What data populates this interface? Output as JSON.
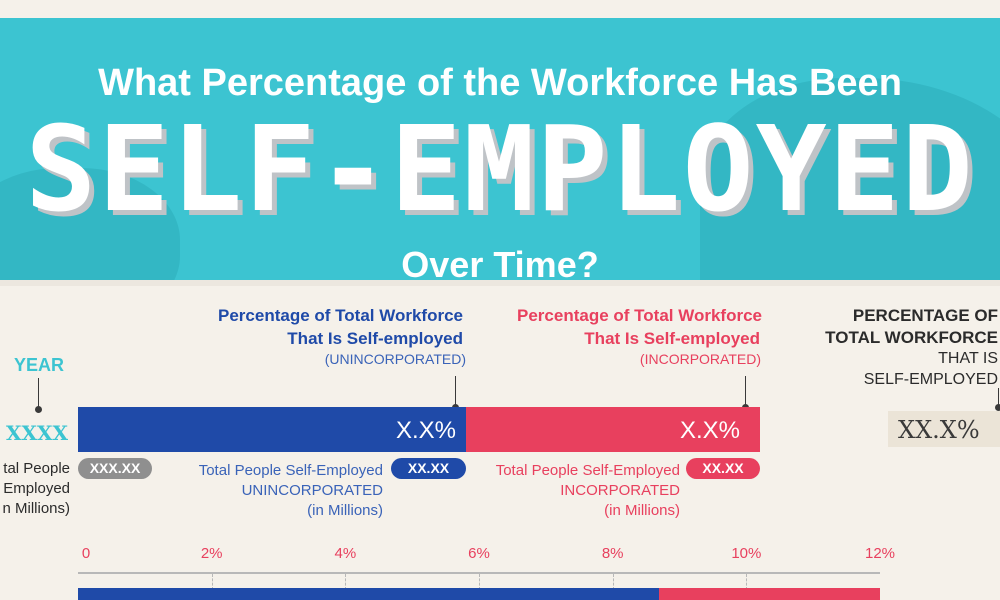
{
  "banner": {
    "title_line1": "What Percentage of the Workforce Has Been",
    "title_line2": "SELF-EMPLOYED",
    "title_line3": "Over Time?"
  },
  "legend": {
    "year_label": "YEAR",
    "year_value": "XXXX",
    "unincorporated": {
      "heading_line1": "Percentage of Total Workforce",
      "heading_line2": "That Is Self-employed",
      "tag": "(UNINCORPORATED)",
      "bar_value": "X.X%",
      "people_label": "Total People Self-Employed",
      "people_type": "UNINCORPORATED",
      "people_unit": "(in Millions)",
      "people_value": "XX.XX"
    },
    "incorporated": {
      "heading_line1": "Percentage of Total Workforce",
      "heading_line2": "That Is Self-employed",
      "tag": "(INCORPORATED)",
      "bar_value": "X.X%",
      "people_label": "Total People Self-Employed",
      "people_type": "INCORPORATED",
      "people_unit": "(in Millions)",
      "people_value": "XX.XX"
    },
    "total_people": {
      "line1": "tal People",
      "line2": "Employed",
      "line3": "n Millions)",
      "value": "XXX.XX"
    },
    "total_pct": {
      "line1": "PERCENTAGE OF",
      "line2": "TOTAL WORKFORCE",
      "line3": "THAT IS",
      "line4": "SELF-EMPLOYED",
      "value": "XX.X%"
    }
  },
  "colors": {
    "unincorporated": "#1f4aa8",
    "incorporated": "#e8405e",
    "banner": "#3cc4d1"
  },
  "chart_data": {
    "type": "bar",
    "orientation": "horizontal",
    "stacked": true,
    "xlim": [
      0,
      12
    ],
    "x_ticks": [
      "0",
      "2%",
      "4%",
      "6%",
      "8%",
      "10%",
      "12%"
    ],
    "series": [
      {
        "name": "UNINCORPORATED",
        "values": [
          8.7
        ]
      },
      {
        "name": "INCORPORATED",
        "values": [
          3.3
        ]
      }
    ]
  }
}
